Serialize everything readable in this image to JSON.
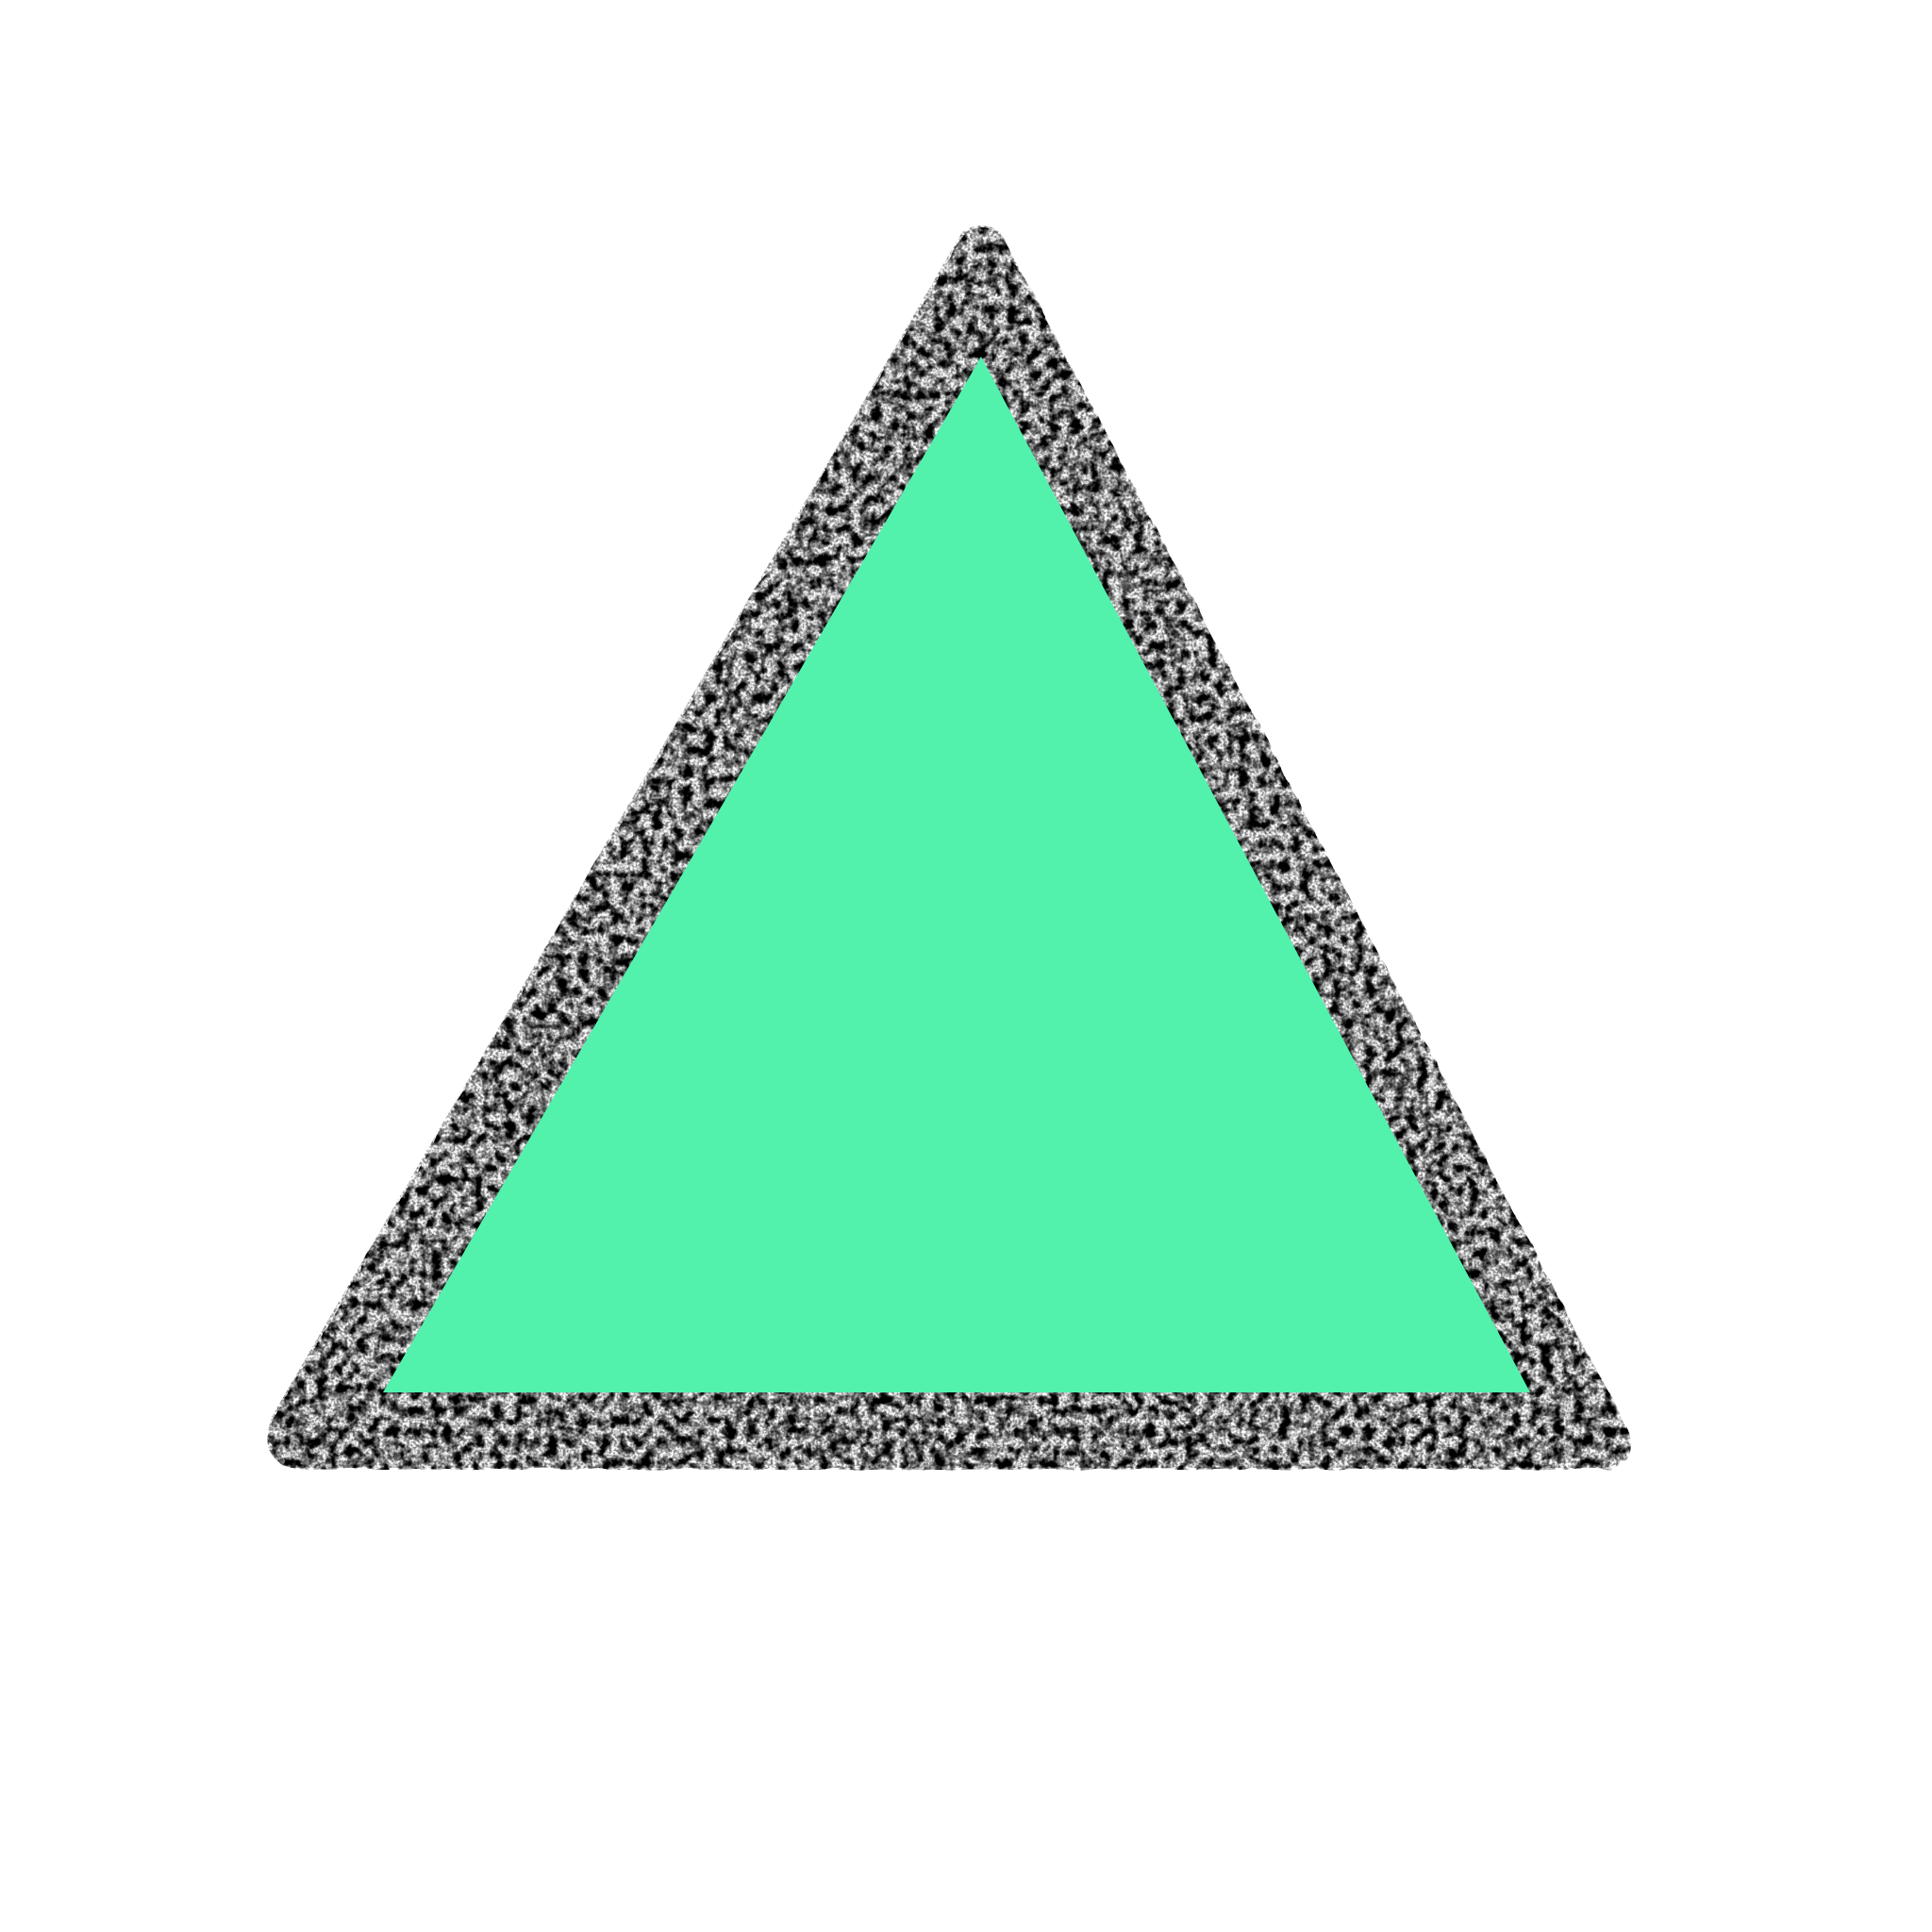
{
  "shape": {
    "kind": "triangle-icon",
    "fill_color": "#52f2ad",
    "border_color": "#000000",
    "border_texture": "chalk"
  },
  "background_color": "#ffffff"
}
